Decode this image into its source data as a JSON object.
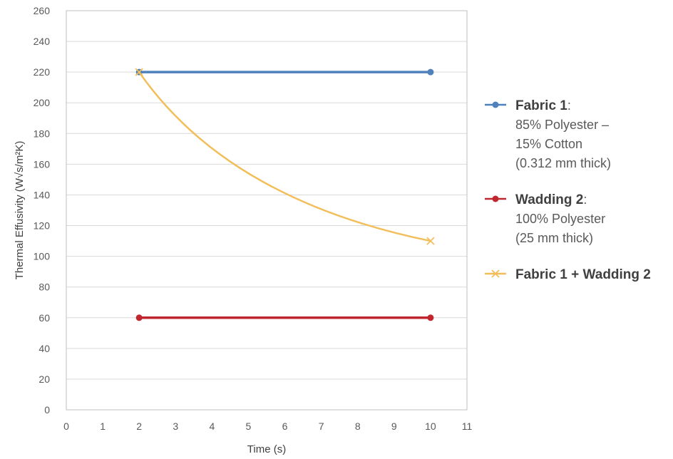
{
  "chart_data": {
    "type": "line",
    "xlabel": "Time (s)",
    "ylabel": "Thermal Effusivity (W√s/m²K)",
    "xlim": [
      0,
      11
    ],
    "ylim": [
      0,
      260
    ],
    "xticks": [
      0,
      1,
      2,
      3,
      4,
      5,
      6,
      7,
      8,
      9,
      10,
      11
    ],
    "yticks": [
      0,
      20,
      40,
      60,
      80,
      100,
      120,
      140,
      160,
      180,
      200,
      220,
      240,
      260
    ],
    "grid": "horizontal",
    "legend_position": "right",
    "series": [
      {
        "name": "Fabric 1",
        "description": [
          "85% Polyester –",
          "15% Cotton",
          "(0.312 mm thick)"
        ],
        "color": "#4f81bd",
        "marker": "circle",
        "smooth": false,
        "x": [
          2,
          10
        ],
        "y": [
          220,
          220
        ]
      },
      {
        "name": "Wadding 2",
        "description": [
          "100% Polyester",
          "(25 mm thick)"
        ],
        "color": "#c0262d",
        "marker": "circle",
        "smooth": false,
        "x": [
          2,
          10
        ],
        "y": [
          60,
          60
        ]
      },
      {
        "name": "Fabric 1 + Wadding 2",
        "description": [],
        "color": "#f2be5a",
        "marker": "x",
        "smooth": true,
        "x": [
          2,
          10
        ],
        "y": [
          220,
          110
        ]
      }
    ]
  }
}
